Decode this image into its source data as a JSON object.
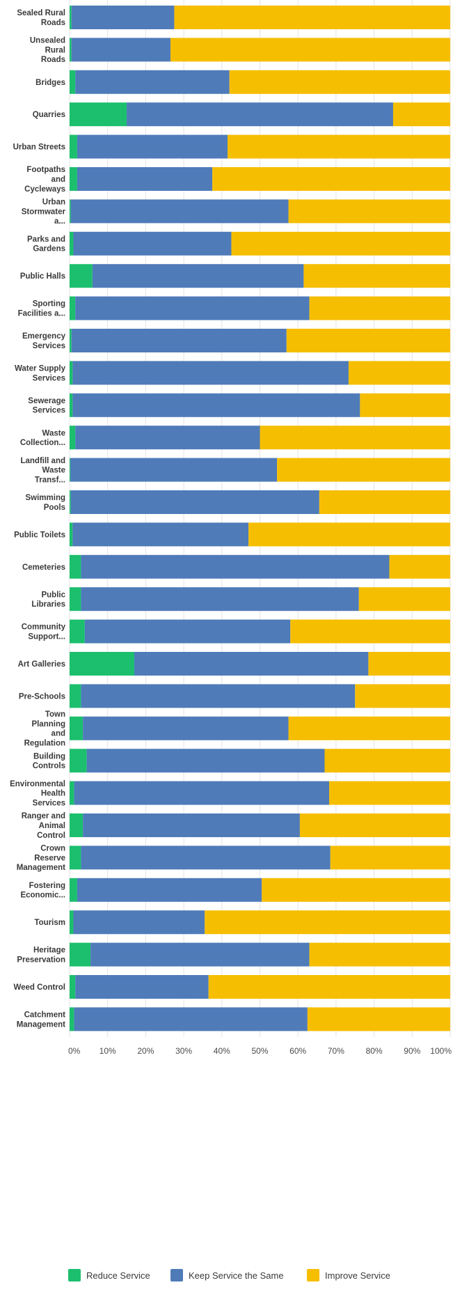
{
  "chart_data": {
    "type": "bar",
    "orientation": "horizontal",
    "stacked": "percent",
    "categories": [
      [
        "Sealed Rural",
        "Roads"
      ],
      [
        "Unsealed",
        "Rural",
        "Roads"
      ],
      [
        "Bridges"
      ],
      [
        "Quarries"
      ],
      [
        "Urban Streets"
      ],
      [
        "Footpaths",
        "and",
        "Cycleways"
      ],
      [
        "Urban",
        "Stormwater",
        "a..."
      ],
      [
        "Parks and",
        "Gardens"
      ],
      [
        "Public Halls"
      ],
      [
        "Sporting",
        "Facilities a..."
      ],
      [
        "Emergency",
        "Services"
      ],
      [
        "Water Supply",
        "Services"
      ],
      [
        "Sewerage",
        "Services"
      ],
      [
        "Waste",
        "Collection..."
      ],
      [
        "Landfill and",
        "Waste",
        "Transf..."
      ],
      [
        "Swimming",
        "Pools"
      ],
      [
        "Public Toilets"
      ],
      [
        "Cemeteries"
      ],
      [
        "Public",
        "Libraries"
      ],
      [
        "Community",
        "Support..."
      ],
      [
        "Art Galleries"
      ],
      [
        "Pre-Schools"
      ],
      [
        "Town",
        "Planning",
        "and",
        "Regulation"
      ],
      [
        "Building",
        "Controls"
      ],
      [
        "Environmental",
        "Health",
        "Services"
      ],
      [
        "Ranger and",
        "Animal",
        "Control"
      ],
      [
        "Crown",
        "Reserve",
        "Management"
      ],
      [
        "Fostering",
        "Economic..."
      ],
      [
        "Tourism"
      ],
      [
        "Heritage",
        "Preservation"
      ],
      [
        "Weed Control"
      ],
      [
        "Catchment",
        "Management"
      ]
    ],
    "series": [
      {
        "name": "Reduce Service",
        "color": "#1cbf6e",
        "values": [
          0.5,
          0.5,
          1.5,
          15,
          2,
          2,
          0.3,
          1,
          6,
          1.5,
          0.5,
          0.8,
          0.8,
          1.5,
          0.2,
          0.3,
          0.8,
          3,
          3,
          4,
          17,
          3,
          3.5,
          4.5,
          1.2,
          3.5,
          3,
          2,
          1,
          5.5,
          1.5,
          1.2
        ]
      },
      {
        "name": "Keep Service the Same",
        "color": "#4f7bb9",
        "values": [
          27,
          26,
          40.5,
          70,
          39.5,
          35.5,
          57.2,
          41.5,
          55.5,
          61.5,
          56.5,
          72.5,
          75.5,
          48.5,
          54.3,
          65.3,
          46.2,
          81,
          73,
          54,
          61.5,
          72,
          54,
          62.5,
          67,
          57,
          65.5,
          48.5,
          34.5,
          57.5,
          35,
          61.3
        ]
      },
      {
        "name": "Improve Service",
        "color": "#f6be00",
        "values": [
          72.5,
          73.5,
          58,
          15,
          58.5,
          62.5,
          42.5,
          57.5,
          38.5,
          37,
          43,
          26.7,
          23.7,
          50,
          45.5,
          34.4,
          53,
          16,
          24,
          42,
          21.5,
          25,
          42.5,
          33,
          31.8,
          39.5,
          31.5,
          49.5,
          64.5,
          37,
          63.5,
          37.5
        ]
      }
    ],
    "xlim": [
      0,
      100
    ],
    "xticks": [
      "0%",
      "10%",
      "20%",
      "30%",
      "40%",
      "50%",
      "60%",
      "70%",
      "80%",
      "90%",
      "100%"
    ],
    "legend_position": "bottom",
    "grid": true
  }
}
